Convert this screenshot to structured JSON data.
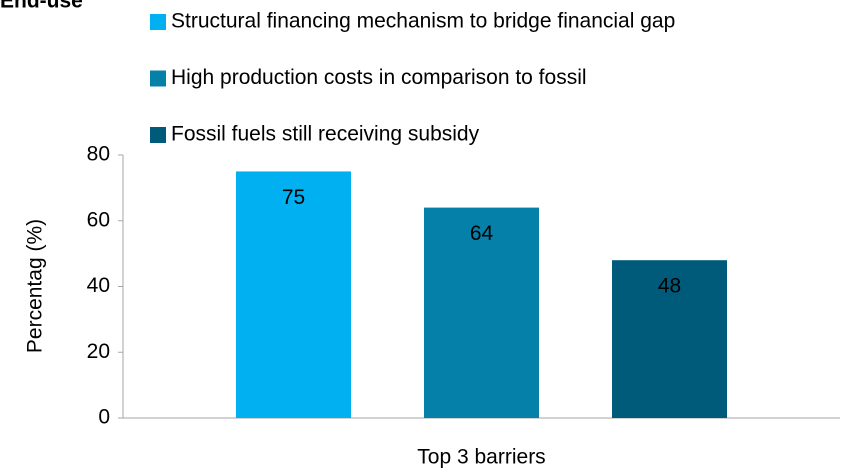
{
  "chart_data": {
    "type": "bar",
    "title": "End-use",
    "categories": [
      "Top 3 barriers"
    ],
    "series": [
      {
        "name": "Structural financing mechanism to bridge financial gap",
        "color": "#00b0f0",
        "values": [
          75
        ]
      },
      {
        "name": "High production costs in comparison to fossil",
        "color": "#0580a8",
        "values": [
          64
        ]
      },
      {
        "name": "Fossil fuels still receiving subsidy",
        "color": "#005b7b",
        "values": [
          48
        ]
      }
    ],
    "y_label": "Percentag (%)",
    "ylim": [
      0,
      80
    ],
    "yticks": [
      0,
      20,
      40,
      60,
      80
    ],
    "grid": false,
    "legend": "top"
  }
}
